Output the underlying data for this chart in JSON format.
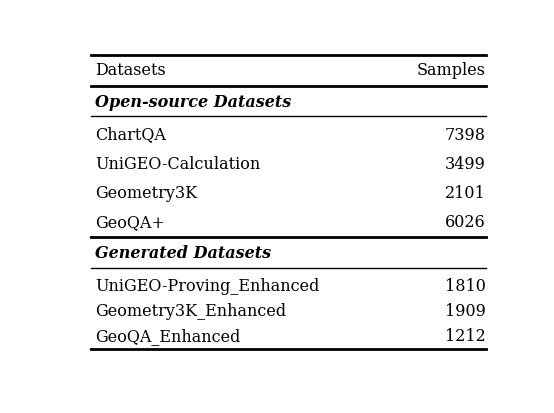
{
  "header": [
    "Datasets",
    "Samples"
  ],
  "section1_label": "Open-source Datasets",
  "section1_rows": [
    [
      "ChartQA",
      "7398"
    ],
    [
      "UniGEO-Calculation",
      "3499"
    ],
    [
      "Geometry3K",
      "2101"
    ],
    [
      "GeoQA+",
      "6026"
    ]
  ],
  "section2_label": "Generated Datasets",
  "section2_rows": [
    [
      "UniGEO-Proving_Enhanced",
      "1810"
    ],
    [
      "Geometry3K_Enhanced",
      "1909"
    ],
    [
      "GeoQA_Enhanced",
      "1212"
    ]
  ],
  "bg_color": "#ffffff",
  "text_color": "#000000",
  "header_fontsize": 11.5,
  "section_fontsize": 11.5,
  "row_fontsize": 11.5,
  "fig_width": 5.54,
  "fig_height": 4.14,
  "dpi": 100
}
